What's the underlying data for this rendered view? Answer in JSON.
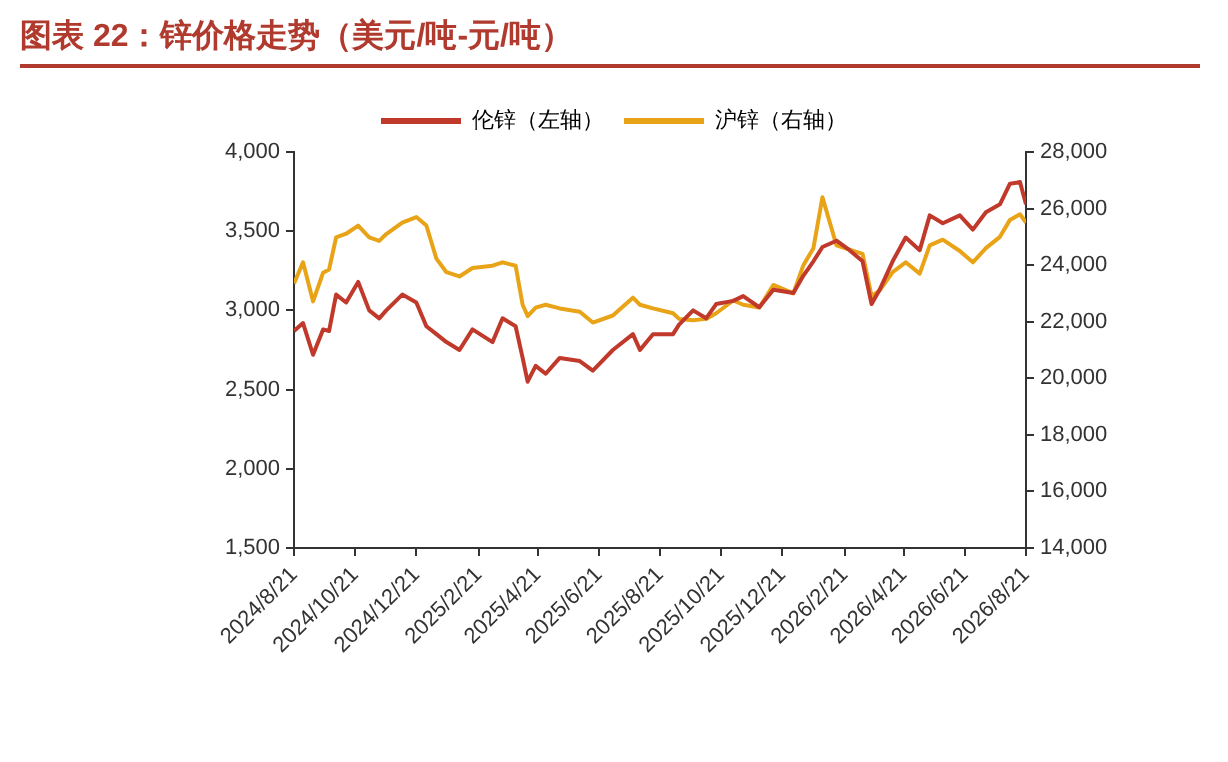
{
  "chart_data": {
    "type": "line",
    "title": "图表 22：锌价格走势（美元/吨-元/吨）",
    "x": [
      "2024-08-21",
      "2024-08-30",
      "2024-09-09",
      "2024-09-19",
      "2024-09-25",
      "2024-10-02",
      "2024-10-12",
      "2024-10-24",
      "2024-11-04",
      "2024-11-14",
      "2024-11-21",
      "2024-12-07",
      "2024-12-21",
      "2024-12-31",
      "2025-01-10",
      "2025-01-20",
      "2025-02-02",
      "2025-02-15",
      "2025-03-07",
      "2025-03-17",
      "2025-03-30",
      "2025-04-06",
      "2025-04-11",
      "2025-04-19",
      "2025-04-29",
      "2025-05-13",
      "2025-06-02",
      "2025-06-15",
      "2025-07-05",
      "2025-07-25",
      "2025-08-01",
      "2025-08-14",
      "2025-09-03",
      "2025-09-09",
      "2025-09-23",
      "2025-10-06",
      "2025-10-16",
      "2025-11-02",
      "2025-11-12",
      "2025-11-28",
      "2025-12-12",
      "2026-01-01",
      "2026-01-11",
      "2026-01-21",
      "2026-01-30",
      "2026-02-13",
      "2026-02-26",
      "2026-03-11",
      "2026-03-20",
      "2026-03-28",
      "2026-04-10",
      "2026-04-23",
      "2026-05-07",
      "2026-05-17",
      "2026-05-30",
      "2026-06-16",
      "2026-06-29",
      "2026-07-12",
      "2026-07-26",
      "2026-08-05",
      "2026-08-15",
      "2026-08-21"
    ],
    "series": [
      {
        "name": "伦锌（左轴）",
        "color": "#c0392b",
        "values": [
          2870,
          2920,
          2720,
          2880,
          2870,
          3100,
          3050,
          3180,
          3000,
          2950,
          3000,
          3100,
          3050,
          2900,
          2850,
          2800,
          2750,
          2880,
          2800,
          2950,
          2900,
          2700,
          2550,
          2650,
          2600,
          2700,
          2680,
          2620,
          2750,
          2850,
          2750,
          2850,
          2850,
          2910,
          3000,
          2950,
          3040,
          3060,
          3090,
          3020,
          3130,
          3110,
          3220,
          3310,
          3400,
          3440,
          3380,
          3310,
          3040,
          3130,
          3310,
          3460,
          3380,
          3600,
          3550,
          3600,
          3510,
          3620,
          3670,
          3800,
          3810,
          3670
        ]
      },
      {
        "name": "沪锌（右轴）",
        "color": "#e8a317",
        "axis": "y2",
        "values": [
          23350,
          24100,
          22720,
          23730,
          23850,
          24980,
          25110,
          25400,
          24980,
          24860,
          25100,
          25500,
          25700,
          25400,
          24230,
          23750,
          23600,
          23900,
          23980,
          24100,
          23980,
          22600,
          22200,
          22500,
          22600,
          22470,
          22350,
          21970,
          22220,
          22850,
          22600,
          22470,
          22300,
          22100,
          22050,
          22100,
          22300,
          22750,
          22600,
          22500,
          23300,
          23000,
          24000,
          24600,
          26400,
          24700,
          24550,
          24400,
          22900,
          23100,
          23750,
          24100,
          23700,
          24700,
          24900,
          24500,
          24100,
          24600,
          25000,
          25600,
          25800,
          25500
        ]
      }
    ],
    "xlim": [
      "2024-08-21",
      "2026-08-21"
    ],
    "xticks": [
      {
        "value": "2024-08-21",
        "label": "2024/8/21"
      },
      {
        "value": "2024-10-21",
        "label": "2024/10/21"
      },
      {
        "value": "2024-12-21",
        "label": "2024/12/21"
      },
      {
        "value": "2025-02-21",
        "label": "2025/2/21"
      },
      {
        "value": "2025-04-21",
        "label": "2025/4/21"
      },
      {
        "value": "2025-06-21",
        "label": "2025/6/21"
      },
      {
        "value": "2025-08-21",
        "label": "2025/8/21"
      },
      {
        "value": "2025-10-21",
        "label": "2025/10/21"
      },
      {
        "value": "2025-12-21",
        "label": "2025/12/21"
      },
      {
        "value": "2026-02-21",
        "label": "2026/2/21"
      },
      {
        "value": "2026-04-21",
        "label": "2026/4/21"
      },
      {
        "value": "2026-06-21",
        "label": "2026/6/21"
      },
      {
        "value": "2026-08-21",
        "label": "2026/8/21"
      }
    ],
    "ylim": [
      1500,
      4000
    ],
    "yticks": [
      {
        "value": 1500,
        "label": "1,500"
      },
      {
        "value": 2000,
        "label": "2,000"
      },
      {
        "value": 2500,
        "label": "2,500"
      },
      {
        "value": 3000,
        "label": "3,000"
      },
      {
        "value": 3500,
        "label": "3,500"
      },
      {
        "value": 4000,
        "label": "4,000"
      }
    ],
    "y2lim": [
      14000,
      28000
    ],
    "y2ticks": [
      {
        "value": 14000,
        "label": "14,000"
      },
      {
        "value": 16000,
        "label": "16,000"
      },
      {
        "value": 18000,
        "label": "18,000"
      },
      {
        "value": 20000,
        "label": "20,000"
      },
      {
        "value": 22000,
        "label": "22,000"
      },
      {
        "value": 24000,
        "label": "24,000"
      },
      {
        "value": 26000,
        "label": "26,000"
      },
      {
        "value": 28000,
        "label": "28,000"
      }
    ],
    "legend": "top",
    "grid": false,
    "marker": "none",
    "line_style": "solid"
  }
}
